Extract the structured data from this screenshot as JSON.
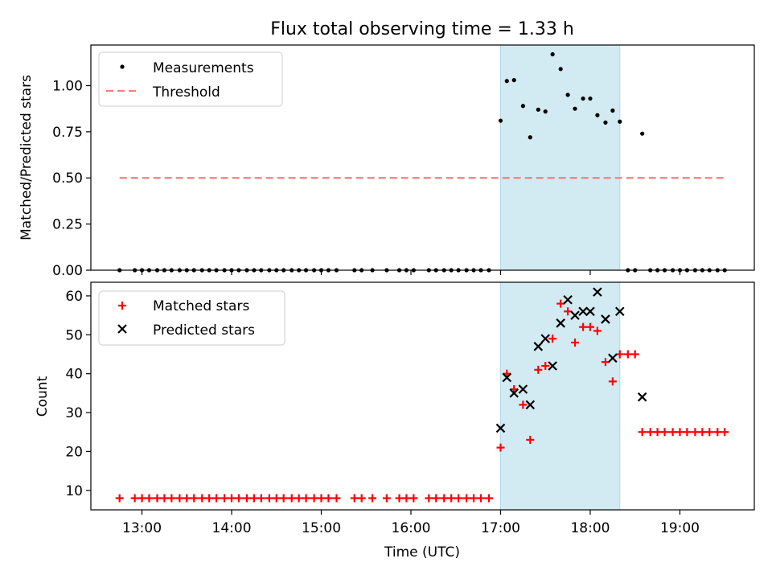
{
  "figure": {
    "title": "Flux total observing time = 1.33 h"
  },
  "chart_data": [
    {
      "type": "scatter",
      "ylabel": "Matched/Predicted stars",
      "ylim": [
        0,
        1.22
      ],
      "yticks": [
        0.0,
        0.25,
        0.5,
        0.75,
        1.0
      ],
      "ytick_labels": [
        "0.00",
        "0.25",
        "0.50",
        "0.75",
        "1.00"
      ],
      "highlight_span": [
        17.0,
        18.33
      ],
      "highlight_color": "#add8e6",
      "legend_position": "top-left",
      "series": [
        {
          "name": "Measurements",
          "marker": "dot",
          "color": "#000000",
          "x": [
            12.75,
            12.92,
            13.0,
            13.08,
            13.17,
            13.25,
            13.33,
            13.42,
            13.5,
            13.58,
            13.67,
            13.75,
            13.83,
            13.92,
            14.0,
            14.08,
            14.17,
            14.25,
            14.33,
            14.42,
            14.5,
            14.58,
            14.67,
            14.75,
            14.83,
            14.92,
            15.0,
            15.08,
            15.17,
            15.37,
            15.45,
            15.57,
            15.73,
            15.87,
            15.95,
            16.03,
            16.2,
            16.28,
            16.37,
            16.45,
            16.53,
            16.62,
            16.7,
            16.78,
            16.87,
            17.0,
            17.07,
            17.15,
            17.25,
            17.33,
            17.42,
            17.5,
            17.58,
            17.67,
            17.75,
            17.83,
            17.92,
            18.0,
            18.08,
            18.17,
            18.25,
            18.33,
            18.42,
            18.5,
            18.58,
            18.67,
            18.75,
            18.83,
            18.92,
            19.0,
            19.08,
            19.17,
            19.25,
            19.33,
            19.42,
            19.5
          ],
          "y": [
            0,
            0,
            0,
            0,
            0,
            0,
            0,
            0,
            0,
            0,
            0,
            0,
            0,
            0,
            0,
            0,
            0,
            0,
            0,
            0,
            0,
            0,
            0,
            0,
            0,
            0,
            0,
            0,
            0,
            0,
            0,
            0,
            0,
            0,
            0,
            0,
            0,
            0,
            0,
            0,
            0,
            0,
            0,
            0,
            0,
            0.81,
            1.025,
            1.03,
            0.89,
            0.72,
            0.87,
            0.86,
            1.17,
            1.09,
            0.95,
            0.875,
            0.93,
            0.93,
            0.84,
            0.8,
            0.865,
            0.805,
            0,
            0,
            0.74,
            0,
            0,
            0,
            0,
            0,
            0,
            0,
            0,
            0,
            0,
            0
          ]
        },
        {
          "name": "Threshold",
          "style": "dashed",
          "color": "#f08080",
          "x": [
            12.75,
            19.5
          ],
          "y": [
            0.5,
            0.5
          ]
        }
      ]
    },
    {
      "type": "scatter",
      "xlabel": "Time (UTC)",
      "ylabel": "Count",
      "xlim": [
        12.43,
        19.83
      ],
      "ylim": [
        5,
        63.5
      ],
      "xticks": [
        13,
        14,
        15,
        16,
        17,
        18,
        19
      ],
      "xtick_labels": [
        "13:00",
        "14:00",
        "15:00",
        "16:00",
        "17:00",
        "18:00",
        "19:00"
      ],
      "yticks": [
        10,
        20,
        30,
        40,
        50,
        60
      ],
      "ytick_labels": [
        "10",
        "20",
        "30",
        "40",
        "50",
        "60"
      ],
      "highlight_span": [
        17.0,
        18.33
      ],
      "highlight_color": "#add8e6",
      "legend_position": "top-left",
      "series": [
        {
          "name": "Matched stars",
          "marker": "plus",
          "color": "#ff0000",
          "x": [
            12.75,
            12.92,
            13.0,
            13.08,
            13.17,
            13.25,
            13.33,
            13.42,
            13.5,
            13.58,
            13.67,
            13.75,
            13.83,
            13.92,
            14.0,
            14.08,
            14.17,
            14.25,
            14.33,
            14.42,
            14.5,
            14.58,
            14.67,
            14.75,
            14.83,
            14.92,
            15.0,
            15.08,
            15.17,
            15.37,
            15.45,
            15.57,
            15.73,
            15.87,
            15.95,
            16.03,
            16.2,
            16.28,
            16.37,
            16.45,
            16.53,
            16.62,
            16.7,
            16.78,
            16.87,
            17.0,
            17.07,
            17.15,
            17.25,
            17.33,
            17.42,
            17.5,
            17.58,
            17.67,
            17.75,
            17.83,
            17.92,
            18.0,
            18.08,
            18.17,
            18.25,
            18.33,
            18.42,
            18.5,
            18.58,
            18.67,
            18.75,
            18.83,
            18.92,
            19.0,
            19.08,
            19.17,
            19.25,
            19.33,
            19.42,
            19.5
          ],
          "y": [
            8,
            8,
            8,
            8,
            8,
            8,
            8,
            8,
            8,
            8,
            8,
            8,
            8,
            8,
            8,
            8,
            8,
            8,
            8,
            8,
            8,
            8,
            8,
            8,
            8,
            8,
            8,
            8,
            8,
            8,
            8,
            8,
            8,
            8,
            8,
            8,
            8,
            8,
            8,
            8,
            8,
            8,
            8,
            8,
            8,
            21,
            40,
            36,
            32,
            23,
            41,
            42,
            49,
            58,
            56,
            48,
            52,
            52,
            51,
            43,
            38,
            45,
            45,
            45,
            25,
            25,
            25,
            25,
            25,
            25,
            25,
            25,
            25,
            25,
            25,
            25
          ]
        },
        {
          "name": "Predicted stars",
          "marker": "x",
          "color": "#000000",
          "x": [
            17.0,
            17.07,
            17.15,
            17.25,
            17.33,
            17.42,
            17.5,
            17.58,
            17.67,
            17.75,
            17.83,
            17.92,
            18.0,
            18.08,
            18.17,
            18.25,
            18.33,
            18.58
          ],
          "y": [
            26,
            39,
            35,
            36,
            32,
            47,
            49,
            42,
            53,
            59,
            55,
            56,
            56,
            61,
            54,
            44,
            56,
            34
          ]
        }
      ]
    }
  ]
}
